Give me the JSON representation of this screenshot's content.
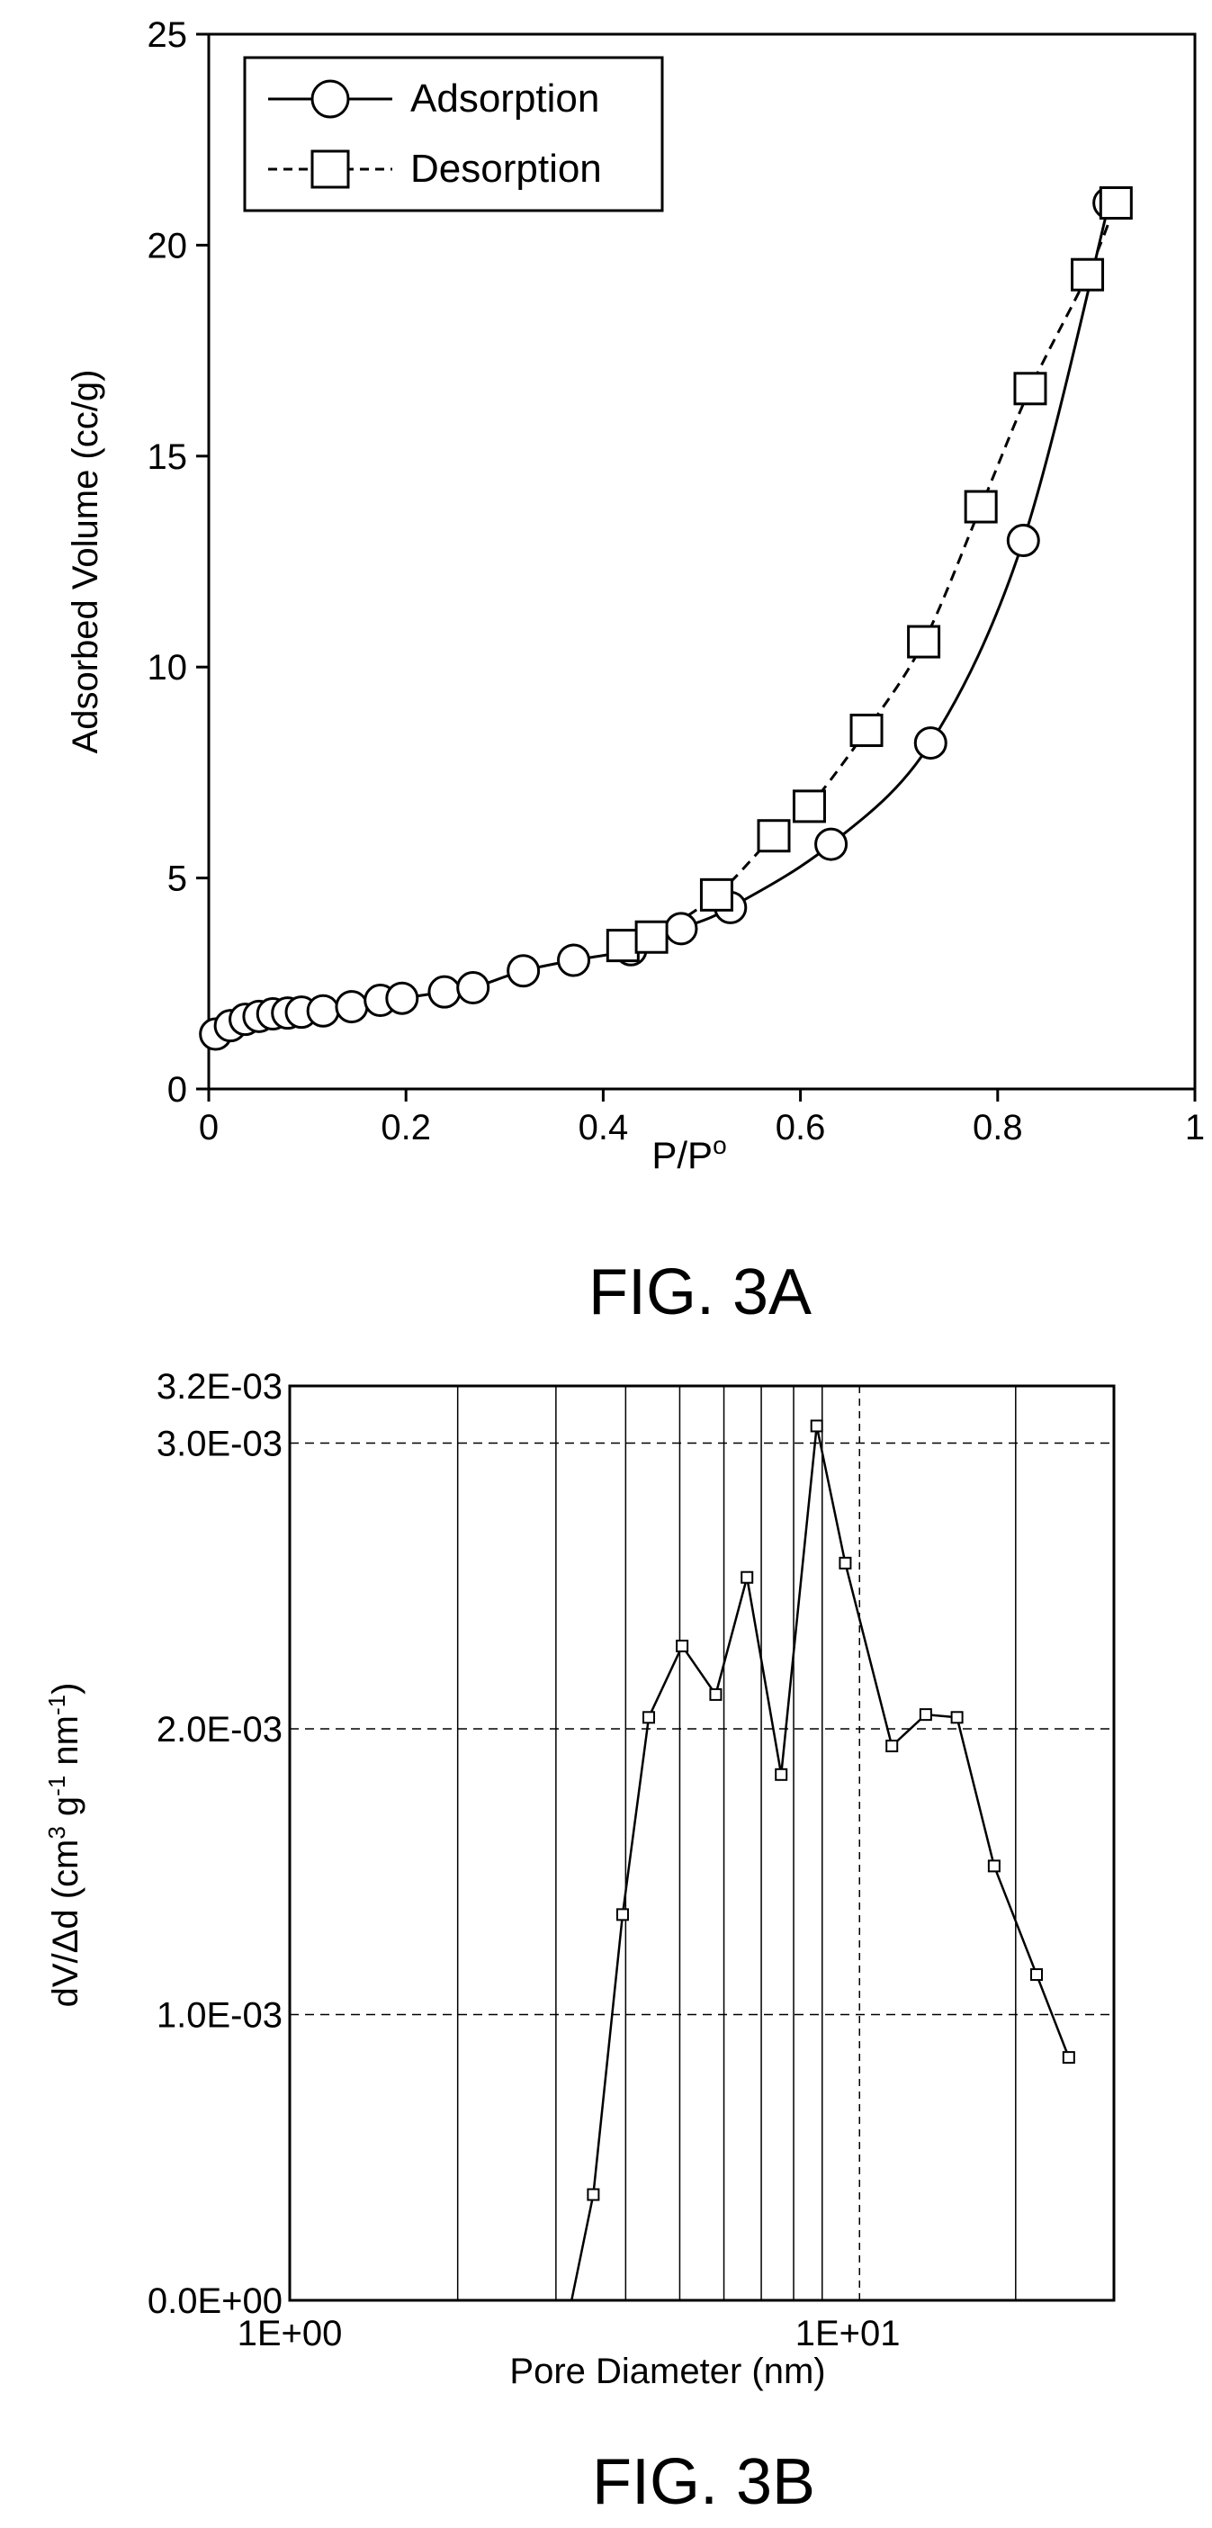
{
  "chart_data": [
    {
      "type": "scatter",
      "figure_label": "FIG. 3A",
      "xlabel": "P/P",
      "xlabel_sup": "o",
      "ylabel": "Adsorbed Volume (cc/g)",
      "xlim": [
        0,
        1
      ],
      "ylim": [
        0,
        25
      ],
      "x_ticks": [
        0,
        0.2,
        0.4,
        0.6,
        0.8,
        1
      ],
      "x_tick_labels": [
        "0",
        "0.2",
        "0.4",
        "0.6",
        "0.8",
        "1"
      ],
      "y_ticks": [
        0,
        5,
        10,
        15,
        20,
        25
      ],
      "y_tick_labels": [
        "0",
        "5",
        "10",
        "15",
        "20",
        "25"
      ],
      "grid": false,
      "legend_position": "top-left",
      "series": [
        {
          "name": "Adsorption",
          "marker": "circle",
          "line": "solid",
          "x": [
            0.007,
            0.022,
            0.037,
            0.051,
            0.065,
            0.08,
            0.094,
            0.116,
            0.145,
            0.174,
            0.196,
            0.239,
            0.268,
            0.319,
            0.37,
            0.428,
            0.479,
            0.529,
            0.631,
            0.732,
            0.826,
            0.913
          ],
          "y": [
            1.3,
            1.5,
            1.65,
            1.72,
            1.78,
            1.8,
            1.82,
            1.85,
            1.95,
            2.1,
            2.15,
            2.3,
            2.4,
            2.8,
            3.05,
            3.3,
            3.8,
            4.3,
            5.8,
            8.2,
            13.0,
            21.0
          ]
        },
        {
          "name": "Desorption",
          "marker": "square",
          "line": "dashed",
          "x": [
            0.42,
            0.449,
            0.515,
            0.573,
            0.609,
            0.667,
            0.725,
            0.783,
            0.833,
            0.891,
            0.92
          ],
          "y": [
            3.4,
            3.6,
            4.6,
            6.0,
            6.7,
            8.5,
            10.6,
            13.8,
            16.6,
            19.3,
            21.0
          ]
        }
      ]
    },
    {
      "type": "line",
      "figure_label": "FIG. 3B",
      "xlabel": "Pore Diameter (nm)",
      "ylabel_parts": [
        "dV/Δd (cm",
        "3",
        " g",
        "-1",
        " nm",
        "-1",
        ")"
      ],
      "x_scale": "log",
      "xlim": [
        1,
        30
      ],
      "ylim": [
        0,
        0.0032
      ],
      "x_tick_labels": [
        "1E+00",
        "1E+01"
      ],
      "x_ticks": [
        1,
        10
      ],
      "y_tick_labels": [
        "0.0E+00",
        "1.0E-03",
        "2.0E-03",
        "3.0E-03",
        "3.2E-03"
      ],
      "y_ticks": [
        0,
        0.001,
        0.002,
        0.003,
        0.0032
      ],
      "solid_vertical_lines_x": [
        2,
        3,
        4,
        5,
        6,
        7,
        8,
        9,
        20
      ],
      "dashed_vertical_lines_x": [
        10.5
      ],
      "dashed_horizontal_lines_y": [
        0.001,
        0.002,
        0.003
      ],
      "series": [
        {
          "marker": "small-square",
          "line": "solid",
          "x": [
            3.2,
            3.5,
            3.95,
            4.4,
            5.05,
            5.8,
            6.6,
            7.6,
            8.8,
            9.9,
            12.0,
            13.8,
            15.7,
            18.3,
            21.8,
            24.9
          ],
          "y": [
            0,
            0.00037,
            0.00135,
            0.00204,
            0.00229,
            0.00212,
            0.00253,
            0.00184,
            0.00306,
            0.00258,
            0.00194,
            0.00205,
            0.00204,
            0.00152,
            0.00114,
            0.00085
          ]
        }
      ]
    }
  ]
}
